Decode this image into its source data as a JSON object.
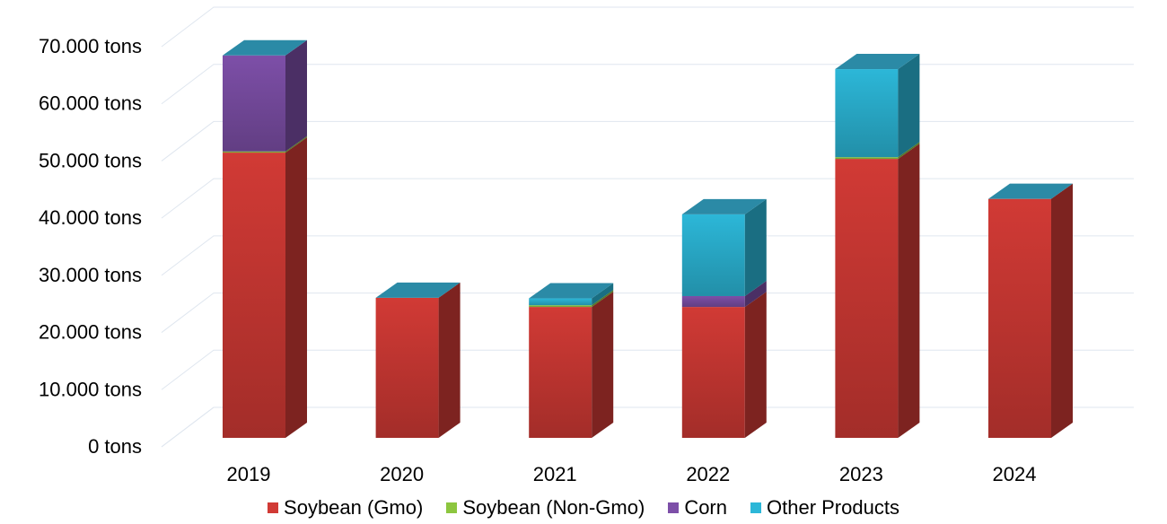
{
  "chart_data": {
    "type": "bar",
    "stacked": true,
    "three_d": true,
    "categories": [
      "2019",
      "2020",
      "2021",
      "2022",
      "2023",
      "2024"
    ],
    "series": [
      {
        "name": "Soybean (Gmo)",
        "color": "#d13a35",
        "values": [
          49900,
          24500,
          22900,
          22900,
          48800,
          41800
        ]
      },
      {
        "name": "Soybean (Non-Gmo)",
        "color": "#8dc63f",
        "values": [
          200,
          0,
          300,
          0,
          300,
          0
        ]
      },
      {
        "name": "Corn",
        "color": "#7d4fa8",
        "values": [
          16800,
          0,
          0,
          1900,
          0,
          0
        ]
      },
      {
        "name": "Other Products",
        "color": "#2cb7d8",
        "values": [
          0,
          0,
          1200,
          14300,
          15400,
          0
        ]
      }
    ],
    "y_ticks": [
      "0 tons",
      "10.000 tons",
      "20.000 tons",
      "30.000 tons",
      "40.000 tons",
      "50.000 tons",
      "60.000 tons",
      "70.000 tons"
    ],
    "ylim": [
      0,
      70000
    ],
    "grid": true,
    "legend_position": "bottom"
  }
}
